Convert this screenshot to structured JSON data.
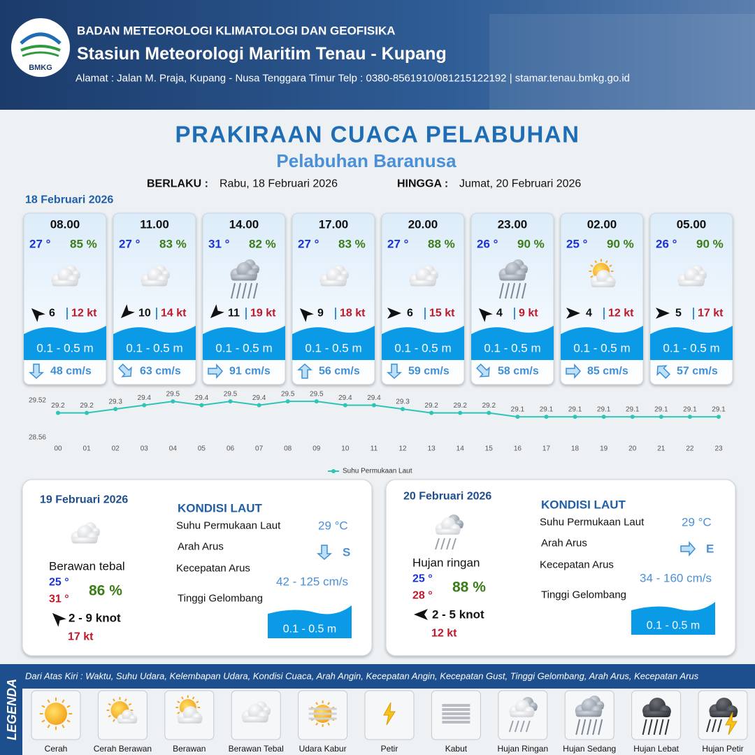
{
  "header": {
    "logo_text": "BMKG",
    "agency": "BADAN METEOROLOGI KLIMATOLOGI DAN GEOFISIKA",
    "station": "Stasiun Meteorologi Maritim Tenau - Kupang",
    "address": "Alamat : Jalan M. Praja, Kupang - Nusa Tenggara Timur Telp : 0380-8561910/081215122192  | stamar.tenau.bmkg.go.id"
  },
  "title": "PRAKIRAAN CUACA PELABUHAN",
  "subtitle": "Pelabuhan Baranusa",
  "validity": {
    "from_label": "BERLAKU :",
    "from": "Rabu, 18 Februari 2026",
    "to_label": "HINGGA :",
    "to": "Jumat, 20 Februari 2026"
  },
  "today": {
    "date": "18 Februari 2026",
    "forecasts": [
      {
        "time": "08.00",
        "temp": "27 °",
        "humidity": "85 %",
        "icon": "cloud",
        "wind_arrow": "NW",
        "wind": 6,
        "gust": "12 kt",
        "wave": "0.1 - 0.5 m",
        "current_arrow": "S",
        "current": "48 cm/s"
      },
      {
        "time": "11.00",
        "temp": "27 °",
        "humidity": "83 %",
        "icon": "cloud",
        "wind_arrow": "SW",
        "wind": 10,
        "gust": "14 kt",
        "wave": "0.1 - 0.5 m",
        "current_arrow": "SE",
        "current": "63 cm/s"
      },
      {
        "time": "14.00",
        "temp": "31 °",
        "humidity": "82 %",
        "icon": "rain",
        "wind_arrow": "SW",
        "wind": 11,
        "gust": "19 kt",
        "wave": "0.1 - 0.5 m",
        "current_arrow": "E",
        "current": "91 cm/s"
      },
      {
        "time": "17.00",
        "temp": "27 °",
        "humidity": "83 %",
        "icon": "cloud",
        "wind_arrow": "NW",
        "wind": 9,
        "gust": "18 kt",
        "wave": "0.1 - 0.5 m",
        "current_arrow": "N",
        "current": "56 cm/s"
      },
      {
        "time": "20.00",
        "temp": "27 °",
        "humidity": "88 %",
        "icon": "cloud",
        "wind_arrow": "E",
        "wind": 6,
        "gust": "15 kt",
        "wave": "0.1 - 0.5 m",
        "current_arrow": "S",
        "current": "59 cm/s"
      },
      {
        "time": "23.00",
        "temp": "26 °",
        "humidity": "90 %",
        "icon": "rain",
        "wind_arrow": "NW",
        "wind": 4,
        "gust": "9 kt",
        "wave": "0.1 - 0.5 m",
        "current_arrow": "SE",
        "current": "58 cm/s"
      },
      {
        "time": "02.00",
        "temp": "25 °",
        "humidity": "90 %",
        "icon": "cloud-sun",
        "wind_arrow": "E",
        "wind": 4,
        "gust": "12 kt",
        "wave": "0.1 - 0.5 m",
        "current_arrow": "E",
        "current": "85 cm/s"
      },
      {
        "time": "05.00",
        "temp": "26 °",
        "humidity": "90 %",
        "icon": "cloud",
        "wind_arrow": "E",
        "wind": 5,
        "gust": "17 kt",
        "wave": "0.1 - 0.5 m",
        "current_arrow": "NW",
        "current": "57 cm/s"
      }
    ]
  },
  "chart_data": {
    "type": "line",
    "categories": [
      "00",
      "01",
      "02",
      "03",
      "04",
      "05",
      "06",
      "07",
      "08",
      "09",
      "10",
      "11",
      "12",
      "13",
      "14",
      "15",
      "16",
      "17",
      "18",
      "19",
      "20",
      "21",
      "22",
      "23"
    ],
    "series": [
      {
        "name": "Suhu Permukaan Laut",
        "color": "#2ec4b6",
        "values": [
          29.2,
          29.2,
          29.3,
          29.4,
          29.5,
          29.4,
          29.5,
          29.4,
          29.5,
          29.5,
          29.4,
          29.4,
          29.3,
          29.2,
          29.2,
          29.2,
          29.1,
          29.1,
          29.1,
          29.1,
          29.1,
          29.1,
          29.1,
          29.1
        ]
      }
    ],
    "ylim": [
      28.56,
      29.52
    ],
    "yticks": [
      28.56,
      29.52
    ],
    "grid": false,
    "legend": "bottom"
  },
  "outlook": [
    {
      "date": "19 Februari 2026",
      "icon": "cloud",
      "condition": "Berawan tebal",
      "temp_min": "25 °",
      "temp_max": "31 °",
      "humidity": "86 %",
      "wind_arrow": "NW",
      "wind": "2 - 9 knot",
      "gust": "17 kt",
      "sea_heading": "KONDISI LAUT",
      "sst_label": "Suhu Permukaan Laut",
      "sst": "29 °C",
      "current_dir_label": "Arah Arus",
      "current_dir": "S",
      "current_speed_label": "Kecepatan Arus",
      "current_speed": "42 - 125 cm/s",
      "wave_label": "Tinggi Gelombang",
      "wave": "0.1 - 0.5 m"
    },
    {
      "date": "20 Februari 2026",
      "icon": "light-rain",
      "condition": "Hujan ringan",
      "temp_min": "25 °",
      "temp_max": "28 °",
      "humidity": "88 %",
      "wind_arrow": "W",
      "wind": "2 - 5 knot",
      "gust": "12 kt",
      "sea_heading": "KONDISI LAUT",
      "sst_label": "Suhu Permukaan Laut",
      "sst": "29 °C",
      "current_dir_label": "Arah Arus",
      "current_dir": "E",
      "current_speed_label": "Kecepatan Arus",
      "current_speed": "34 - 160 cm/s",
      "wave_label": "Tinggi Gelombang",
      "wave": "0.1 - 0.5 m"
    }
  ],
  "legend": {
    "title": "LEGENDA",
    "description": "Dari Atas Kiri : Waktu, Suhu Udara, Kelembapan Udara, Kondisi Cuaca, Arah Angin, Kecepatan Angin, Kecepatan Gust, Tinggi Gelombang, Arah Arus, Kecepatan Arus",
    "items": [
      {
        "label": "Cerah",
        "icon": "sun"
      },
      {
        "label": "Cerah Berawan",
        "icon": "sun-cloud"
      },
      {
        "label": "Berawan",
        "icon": "cloud-sun"
      },
      {
        "label": "Berawan Tebal",
        "icon": "cloud"
      },
      {
        "label": "Udara Kabur",
        "icon": "haze"
      },
      {
        "label": "Petir",
        "icon": "lightning"
      },
      {
        "label": "Kabut",
        "icon": "fog"
      },
      {
        "label": "Hujan Ringan",
        "icon": "light-rain"
      },
      {
        "label": "Hujan Sedang",
        "icon": "rain"
      },
      {
        "label": "Hujan Lebat",
        "icon": "heavy-rain"
      },
      {
        "label": "Hujan Petir",
        "icon": "storm"
      }
    ]
  }
}
